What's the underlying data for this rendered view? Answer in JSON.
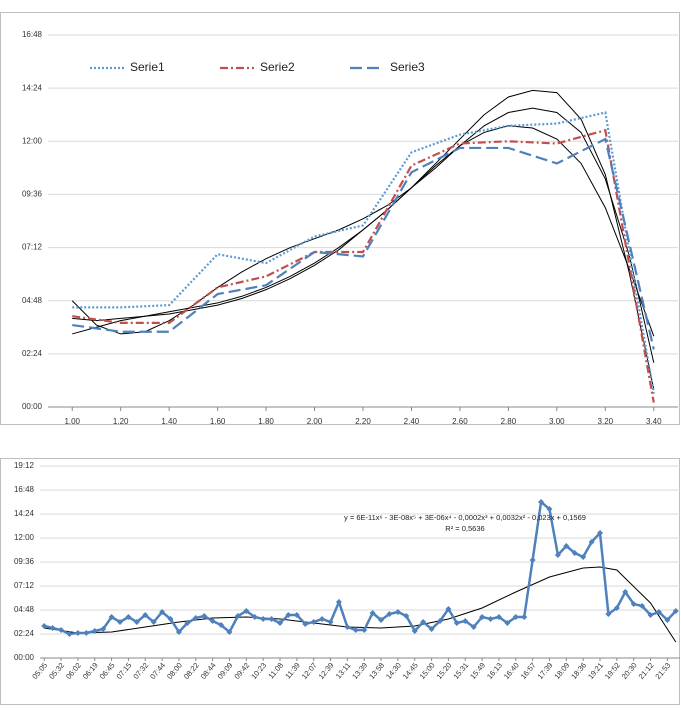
{
  "chart_data": [
    {
      "type": "line",
      "x": [
        1.0,
        1.2,
        1.4,
        1.6,
        1.8,
        2.0,
        2.2,
        2.4,
        2.6,
        2.8,
        3.0,
        3.2,
        3.4
      ],
      "series": [
        {
          "name": "Serie1",
          "color": "#5b9bd5",
          "style": "dotted",
          "values": [
            4.5,
            4.5,
            4.6,
            6.9,
            6.5,
            7.7,
            8.2,
            11.5,
            12.3,
            12.7,
            12.8,
            13.3,
            0.6
          ]
        },
        {
          "name": "Serie2",
          "color": "#c0504d",
          "style": "dash-dot",
          "values": [
            4.1,
            3.8,
            3.8,
            5.4,
            5.9,
            7.0,
            7.0,
            10.9,
            11.9,
            12.0,
            11.9,
            12.5,
            0.2
          ]
        },
        {
          "name": "Serie3",
          "color": "#4f81bd",
          "style": "dash",
          "values": [
            3.7,
            3.4,
            3.4,
            5.1,
            5.5,
            7.0,
            6.8,
            10.6,
            11.7,
            11.7,
            11.0,
            12.1,
            2.6
          ]
        }
      ],
      "trendlines": [
        {
          "color": "#000000",
          "x": [
            1.0,
            1.1,
            1.2,
            1.3,
            1.4,
            1.5,
            1.6,
            1.7,
            1.8,
            1.9,
            2.0,
            2.1,
            2.2,
            2.3,
            2.4,
            2.5,
            2.6,
            2.7,
            2.8,
            2.9,
            3.0,
            3.1,
            3.2,
            3.3,
            3.4
          ],
          "values": [
            3.3,
            3.6,
            3.9,
            4.1,
            4.3,
            4.5,
            4.7,
            5.0,
            5.4,
            5.9,
            6.5,
            7.2,
            8.0,
            8.9,
            9.9,
            11.0,
            12.1,
            13.2,
            14.0,
            14.3,
            14.2,
            13.0,
            10.5,
            6.0,
            0.8
          ]
        },
        {
          "color": "#000000",
          "x": [
            1.0,
            1.1,
            1.2,
            1.3,
            1.4,
            1.5,
            1.6,
            1.7,
            1.8,
            1.9,
            2.0,
            2.1,
            2.2,
            2.3,
            2.4,
            2.5,
            2.6,
            2.7,
            2.8,
            2.9,
            3.0,
            3.1,
            3.2,
            3.3,
            3.4
          ],
          "values": [
            4.8,
            3.7,
            3.3,
            3.4,
            3.9,
            4.6,
            5.4,
            6.1,
            6.7,
            7.2,
            7.6,
            8.0,
            8.5,
            9.1,
            9.9,
            10.8,
            11.8,
            12.7,
            13.3,
            13.5,
            13.3,
            12.4,
            10.3,
            6.8,
            2.0
          ]
        },
        {
          "color": "#000000",
          "x": [
            1.0,
            1.1,
            1.2,
            1.3,
            1.4,
            1.5,
            1.6,
            1.7,
            1.8,
            1.9,
            2.0,
            2.1,
            2.2,
            2.3,
            2.4,
            2.5,
            2.6,
            2.7,
            2.8,
            2.9,
            3.0,
            3.1,
            3.2,
            3.3,
            3.4
          ],
          "values": [
            4.0,
            3.9,
            4.0,
            4.1,
            4.2,
            4.4,
            4.6,
            4.9,
            5.3,
            5.8,
            6.4,
            7.1,
            8.0,
            8.9,
            9.9,
            10.9,
            11.8,
            12.4,
            12.7,
            12.6,
            12.1,
            11.0,
            9.0,
            6.2,
            3.2
          ]
        }
      ],
      "xlim": [
        0.9,
        3.5
      ],
      "xticks": [
        {
          "value": 1.0,
          "label": "1.00"
        },
        {
          "value": 1.2,
          "label": "1.20"
        },
        {
          "value": 1.4,
          "label": "1.40"
        },
        {
          "value": 1.6,
          "label": "1.60"
        },
        {
          "value": 1.8,
          "label": "1.80"
        },
        {
          "value": 2.0,
          "label": "2.00"
        },
        {
          "value": 2.2,
          "label": "2.20"
        },
        {
          "value": 2.4,
          "label": "2.40"
        },
        {
          "value": 2.6,
          "label": "2.60"
        },
        {
          "value": 2.8,
          "label": "2.80"
        },
        {
          "value": 3.0,
          "label": "3.00"
        },
        {
          "value": 3.2,
          "label": "3.20"
        },
        {
          "value": 3.4,
          "label": "3.40"
        }
      ],
      "ylim": [
        0,
        16.8
      ],
      "yticks": [
        {
          "value": 0,
          "label": "00:00"
        },
        {
          "value": 2.4,
          "label": "02:24"
        },
        {
          "value": 4.8,
          "label": "04:48"
        },
        {
          "value": 7.2,
          "label": "07:12"
        },
        {
          "value": 9.6,
          "label": "09:36"
        },
        {
          "value": 12,
          "label": "12:00"
        },
        {
          "value": 14.4,
          "label": "14:24"
        },
        {
          "value": 16.8,
          "label": "16:48"
        }
      ],
      "grid": true,
      "legend": "upper left"
    },
    {
      "type": "line",
      "categories": [
        "05:05",
        null,
        "05:32",
        null,
        "06:02",
        null,
        "06:19",
        null,
        "06:45",
        null,
        "07:15",
        null,
        "07:32",
        null,
        "07:44",
        null,
        "08:00",
        null,
        "08:22",
        null,
        "08:44",
        null,
        "09:09",
        null,
        "09:42",
        null,
        "10:23",
        null,
        "11:08",
        null,
        "11:39",
        null,
        "12:07",
        null,
        "12:39",
        null,
        "13:11",
        null,
        "13:39",
        null,
        "13:58",
        null,
        "14:30",
        null,
        "14:45",
        null,
        "15:00",
        null,
        "15:20",
        null,
        "15:31",
        null,
        "15:49",
        null,
        "16:13",
        null,
        "16:40",
        null,
        "16:57",
        null,
        "17:39",
        null,
        "18:09",
        null,
        "18:36",
        null,
        "19:21",
        null,
        "19:52",
        null,
        "20:30",
        null,
        "21:12",
        null,
        "21:53",
        null
      ],
      "series": [
        {
          "color": "#4f81bd",
          "marker": "diamond",
          "values": [
            3.2,
            3.0,
            2.8,
            2.4,
            2.5,
            2.5,
            2.7,
            2.9,
            4.1,
            3.6,
            4.1,
            3.6,
            4.3,
            3.6,
            4.6,
            3.9,
            2.6,
            3.5,
            4.0,
            4.2,
            3.7,
            3.3,
            2.6,
            4.2,
            4.7,
            4.1,
            3.9,
            3.9,
            3.5,
            4.3,
            4.3,
            3.4,
            3.6,
            3.9,
            3.6,
            5.6,
            3.1,
            2.8,
            2.8,
            4.5,
            3.8,
            4.4,
            4.6,
            4.2,
            2.7,
            3.6,
            2.9,
            3.7,
            4.9,
            3.5,
            3.7,
            3.1,
            4.1,
            3.9,
            4.1,
            3.5,
            4.1,
            4.1,
            9.8,
            15.6,
            14.9,
            10.3,
            11.2,
            10.5,
            10.1,
            11.6,
            12.5,
            4.4,
            5.0,
            6.6,
            5.4,
            5.2,
            4.3,
            4.6,
            3.8,
            4.7
          ]
        }
      ],
      "trendline": {
        "color": "#000000",
        "x": [
          0,
          4,
          8,
          12,
          16,
          20,
          24,
          28,
          32,
          36,
          40,
          44,
          48,
          52,
          56,
          60,
          64,
          66,
          68,
          72,
          75
        ],
        "values": [
          3.0,
          2.5,
          2.6,
          3.1,
          3.6,
          4.0,
          4.1,
          3.9,
          3.5,
          3.1,
          3.0,
          3.2,
          3.9,
          5.0,
          6.6,
          8.1,
          9.0,
          9.1,
          8.8,
          5.5,
          1.6
        ]
      },
      "annotations": [
        "y = 6E-11x⁶ - 3E-08x⁵ + 3E-06x⁴ - 0,0002x³ + 0,0032x² - 0,023x + 0,1569",
        "R² = 0,5636"
      ],
      "ylim": [
        0,
        19.2
      ],
      "yticks": [
        {
          "value": 0,
          "label": "00:00"
        },
        {
          "value": 2.4,
          "label": "02:24"
        },
        {
          "value": 4.8,
          "label": "04:48"
        },
        {
          "value": 7.2,
          "label": "07:12"
        },
        {
          "value": 9.6,
          "label": "09:36"
        },
        {
          "value": 12,
          "label": "12:00"
        },
        {
          "value": 14.4,
          "label": "14:24"
        },
        {
          "value": 16.8,
          "label": "16:48"
        },
        {
          "value": 19.2,
          "label": "19:12"
        }
      ],
      "grid": true
    }
  ]
}
